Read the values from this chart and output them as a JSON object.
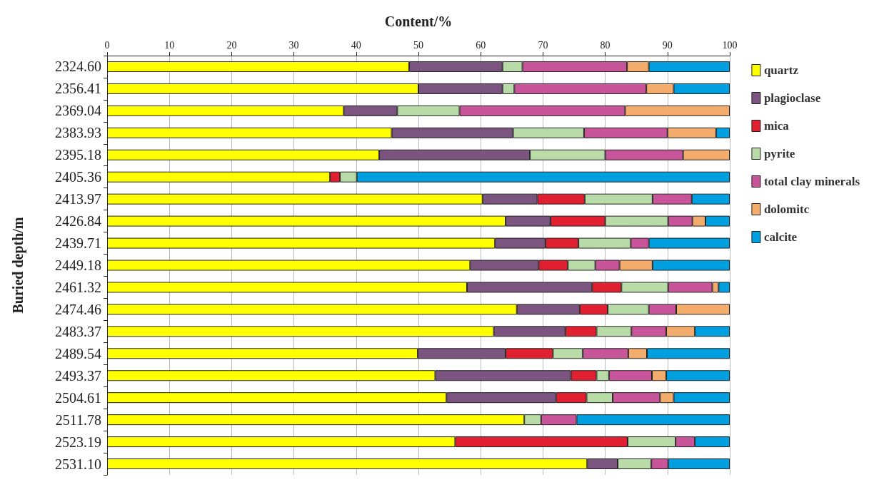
{
  "chart_data": {
    "type": "bar",
    "orientation": "horizontal",
    "stacked": true,
    "xlabel": "Content/%",
    "ylabel": "Buried depth/m",
    "categories": [
      "2324.60",
      "2356.41",
      "2369.04",
      "2383.93",
      "2395.18",
      "2405.36",
      "2413.97",
      "2426.84",
      "2439.71",
      "2449.18",
      "2461.32",
      "2474.46",
      "2483.37",
      "2489.54",
      "2493.37",
      "2504.61",
      "2511.78",
      "2523.19",
      "2531.10"
    ],
    "xlim": [
      0,
      100
    ],
    "xticks": [
      0,
      10,
      20,
      30,
      40,
      50,
      60,
      70,
      80,
      90,
      100
    ],
    "grid": "x",
    "legend": "right",
    "series": [
      {
        "name": "quartz",
        "color": "#ffff00",
        "values": [
          48.5,
          50.0,
          38.0,
          45.7,
          43.7,
          35.8,
          60.3,
          64.0,
          62.3,
          58.3,
          57.8,
          65.8,
          62.1,
          49.9,
          52.7,
          54.5,
          67.0,
          55.9,
          77.1
        ]
      },
      {
        "name": "plagioclase",
        "color": "#7b5580",
        "values": [
          15.0,
          13.5,
          8.6,
          19.5,
          24.2,
          null,
          8.8,
          7.2,
          8.1,
          11.0,
          20.1,
          10.1,
          11.5,
          14.1,
          21.8,
          17.6,
          null,
          null,
          4.9
        ]
      },
      {
        "name": "mica",
        "color": "#e02030",
        "values": [
          null,
          null,
          null,
          null,
          null,
          1.6,
          7.6,
          8.8,
          5.3,
          4.7,
          4.7,
          4.5,
          5.0,
          7.6,
          4.1,
          4.9,
          null,
          27.7,
          null
        ]
      },
      {
        "name": "pyrite",
        "color": "#b8dba8",
        "values": [
          3.2,
          1.9,
          10.0,
          11.4,
          12.1,
          2.7,
          10.9,
          10.1,
          8.4,
          4.4,
          7.5,
          6.6,
          5.6,
          4.8,
          2.0,
          4.2,
          2.7,
          7.7,
          5.4
        ]
      },
      {
        "name": "total clay minerals",
        "color": "#c8559a",
        "values": [
          16.8,
          21.2,
          26.6,
          13.4,
          12.5,
          null,
          6.3,
          3.9,
          2.9,
          3.9,
          7.1,
          4.4,
          5.6,
          7.3,
          6.9,
          7.6,
          5.7,
          3.1,
          2.7
        ]
      },
      {
        "name": "dolomitc",
        "color": "#f4ac6c",
        "values": [
          3.5,
          4.4,
          16.8,
          7.8,
          7.5,
          null,
          null,
          2.1,
          null,
          5.3,
          1.0,
          8.6,
          4.6,
          3.0,
          2.3,
          2.2,
          null,
          null,
          null
        ]
      },
      {
        "name": "calcite",
        "color": "#00a0e0",
        "values": [
          13.0,
          9.0,
          null,
          2.2,
          null,
          59.9,
          6.1,
          3.9,
          13.0,
          12.4,
          1.8,
          null,
          5.6,
          13.3,
          10.2,
          9.0,
          24.6,
          5.6,
          9.9
        ]
      }
    ]
  }
}
